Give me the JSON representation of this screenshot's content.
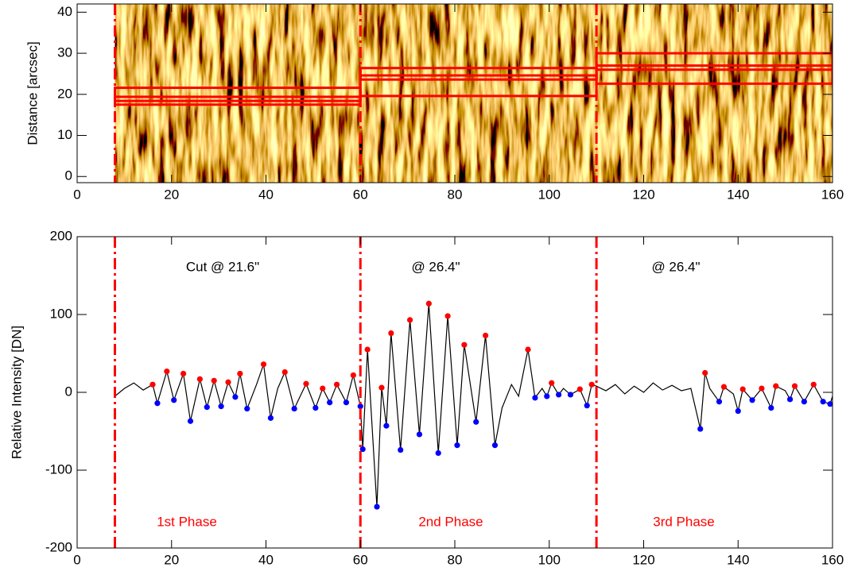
{
  "chart_data": [
    {
      "type": "image",
      "ylabel": "Distance [arcsec]",
      "xlim": [
        0,
        160
      ],
      "xticks": [
        0,
        20,
        40,
        60,
        80,
        100,
        120,
        140,
        160
      ],
      "ylim": [
        -1.5,
        42
      ],
      "yticks": [
        0,
        10,
        20,
        30,
        40
      ],
      "boundaries": [
        8,
        60,
        110
      ],
      "boundary_color": "#ff0000",
      "boxes": [
        [
          8,
          60,
          17.5,
          21.6
        ],
        [
          8,
          60,
          18.4,
          19.4
        ],
        [
          60,
          110,
          19.6,
          26.4
        ],
        [
          60,
          110,
          23.6,
          24.6
        ],
        [
          110,
          160,
          22.6,
          30
        ],
        [
          110,
          160,
          26,
          27
        ]
      ]
    },
    {
      "type": "line",
      "ylabel": "Relative Intensity [DN]",
      "xlim": [
        0,
        160
      ],
      "xticks": [
        0,
        20,
        40,
        60,
        80,
        100,
        120,
        140,
        160
      ],
      "ylim": [
        -200,
        200
      ],
      "yticks": [
        -200,
        -100,
        0,
        100,
        200
      ],
      "boundaries": [
        8,
        60,
        110
      ],
      "boundary_color": "#ff0000",
      "annotations": [
        "Cut @ 21.6\"",
        "@ 26.4\"",
        "@ 26.4\""
      ],
      "phase_labels": [
        "1st Phase",
        "2nd Phase",
        "3rd Phase"
      ],
      "phase_color": "#ff0000",
      "series": [
        {
          "style": "line",
          "color": "#000000",
          "x": [
            8,
            10,
            12,
            14,
            16,
            17,
            19,
            20.5,
            22.5,
            24,
            26,
            27.5,
            29,
            30.5,
            32,
            33.5,
            34.5,
            36,
            38,
            39.5,
            41,
            42.5,
            44,
            46,
            48.5,
            50.5,
            52,
            53.5,
            55,
            57,
            58.5,
            60,
            60.5,
            61.5,
            63.5,
            64.5,
            65.5,
            66.5,
            68.5,
            70.5,
            72.5,
            74.5,
            76.5,
            78.5,
            80.5,
            82,
            84.5,
            86.5,
            88.5,
            90,
            92,
            93.5,
            95.5,
            97,
            98.5,
            99.5,
            100.5,
            102,
            103,
            104.5,
            106.5,
            108,
            109,
            110,
            112,
            114,
            116,
            118,
            120,
            122,
            124,
            126,
            128,
            130,
            132,
            133,
            134,
            136,
            137,
            139,
            140,
            141,
            143,
            145,
            147,
            148,
            150,
            151,
            152,
            154,
            156,
            158,
            159.5,
            160
          ],
          "values": [
            -5,
            5,
            12,
            3,
            10,
            -14,
            27,
            -10,
            24,
            -37,
            17,
            -19,
            15,
            -18,
            13,
            -6,
            24,
            -21,
            10,
            36,
            -33,
            5,
            26,
            -21,
            11,
            -20,
            5,
            -13,
            10,
            -13,
            22,
            -18,
            -73,
            55,
            -147,
            6,
            -43,
            76,
            -74,
            93,
            -54,
            114,
            -78,
            98,
            -68,
            61,
            -38,
            73,
            -68,
            -20,
            10,
            -5,
            55,
            -7,
            5,
            -5,
            12,
            -3,
            5,
            -3,
            4,
            -17,
            10,
            8,
            2,
            10,
            -2,
            8,
            0,
            12,
            3,
            9,
            2,
            5,
            -47,
            25,
            5,
            -12,
            7,
            -2,
            -24,
            4,
            -10,
            5,
            -20,
            8,
            2,
            -9,
            8,
            -12,
            10,
            -12,
            -15,
            -5
          ]
        },
        {
          "style": "dots",
          "color": "#ff0000",
          "x": [
            16,
            19,
            22.5,
            26,
            29,
            32,
            34.5,
            39.5,
            44,
            48.5,
            52,
            55,
            58.5,
            61.5,
            64.5,
            66.5,
            70.5,
            74.5,
            78.5,
            82,
            86.5,
            95.5,
            100.5,
            106.5,
            109,
            133,
            137,
            141,
            145,
            148,
            152,
            156
          ],
          "values": [
            10,
            27,
            24,
            17,
            15,
            13,
            24,
            36,
            26,
            11,
            5,
            10,
            22,
            55,
            6,
            76,
            93,
            114,
            98,
            61,
            73,
            55,
            12,
            4,
            10,
            25,
            7,
            4,
            5,
            8,
            8,
            10
          ]
        },
        {
          "style": "dots",
          "color": "#0000ff",
          "x": [
            17,
            20.5,
            24,
            27.5,
            30.5,
            33.5,
            36,
            41,
            46,
            50.5,
            53.5,
            57,
            60,
            60.5,
            63.5,
            65.5,
            68.5,
            72.5,
            76.5,
            80.5,
            84.5,
            88.5,
            97,
            99.5,
            102,
            104.5,
            108,
            132,
            136,
            140,
            143,
            147,
            151,
            154,
            158,
            159.5
          ],
          "values": [
            -14,
            -10,
            -37,
            -19,
            -18,
            -6,
            -21,
            -33,
            -21,
            -20,
            -13,
            -13,
            -18,
            -73,
            -147,
            -43,
            -74,
            -54,
            -78,
            -68,
            -38,
            -68,
            -7,
            -5,
            -3,
            -3,
            -17,
            -47,
            -12,
            -24,
            -10,
            -20,
            -9,
            -12,
            -12,
            -15
          ]
        }
      ]
    }
  ]
}
